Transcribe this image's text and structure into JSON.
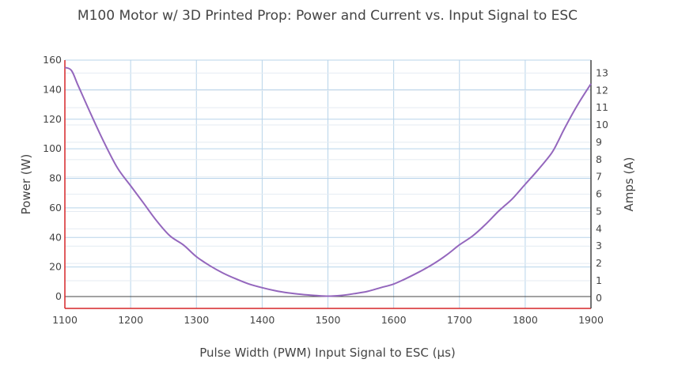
{
  "chart_data": {
    "type": "line",
    "title": "M100 Motor w/ 3D Printed Prop: Power and Current vs. Input Signal to ESC",
    "xlabel": "Pulse Width (PWM) Input Signal to ESC (µs)",
    "ylabel": "Power (W)",
    "y2label": "Amps (A)",
    "xlim": [
      1100,
      1900
    ],
    "ylim": [
      -8,
      160
    ],
    "y2lim": [
      -0.6,
      13.75
    ],
    "x_ticks": [
      1100,
      1200,
      1300,
      1400,
      1500,
      1600,
      1700,
      1800,
      1900
    ],
    "y_ticks": [
      0,
      20,
      40,
      60,
      80,
      100,
      120,
      140,
      160
    ],
    "y2_ticks": [
      0,
      1,
      2,
      3,
      4,
      5,
      6,
      7,
      8,
      9,
      10,
      11,
      12,
      13
    ],
    "grid": true,
    "series": [
      {
        "color": "#9467bd",
        "x": [
          1100,
          1110,
          1120,
          1140,
          1160,
          1180,
          1200,
          1220,
          1240,
          1260,
          1280,
          1300,
          1320,
          1340,
          1360,
          1380,
          1400,
          1420,
          1440,
          1460,
          1480,
          1500,
          1520,
          1540,
          1560,
          1580,
          1600,
          1620,
          1640,
          1660,
          1680,
          1700,
          1720,
          1740,
          1760,
          1780,
          1800,
          1820,
          1840,
          1850,
          1860,
          1880,
          1900
        ],
        "values": [
          155,
          153,
          143,
          123,
          104,
          87,
          75,
          63,
          51,
          41,
          35,
          27,
          21,
          16,
          12,
          8.5,
          6,
          4,
          2.5,
          1.5,
          0.8,
          0.3,
          0.8,
          2,
          3.5,
          6,
          8.5,
          12.5,
          17,
          22,
          28,
          35,
          41,
          49,
          58,
          66,
          76,
          86,
          97,
          105,
          114,
          130,
          144
        ]
      }
    ]
  }
}
